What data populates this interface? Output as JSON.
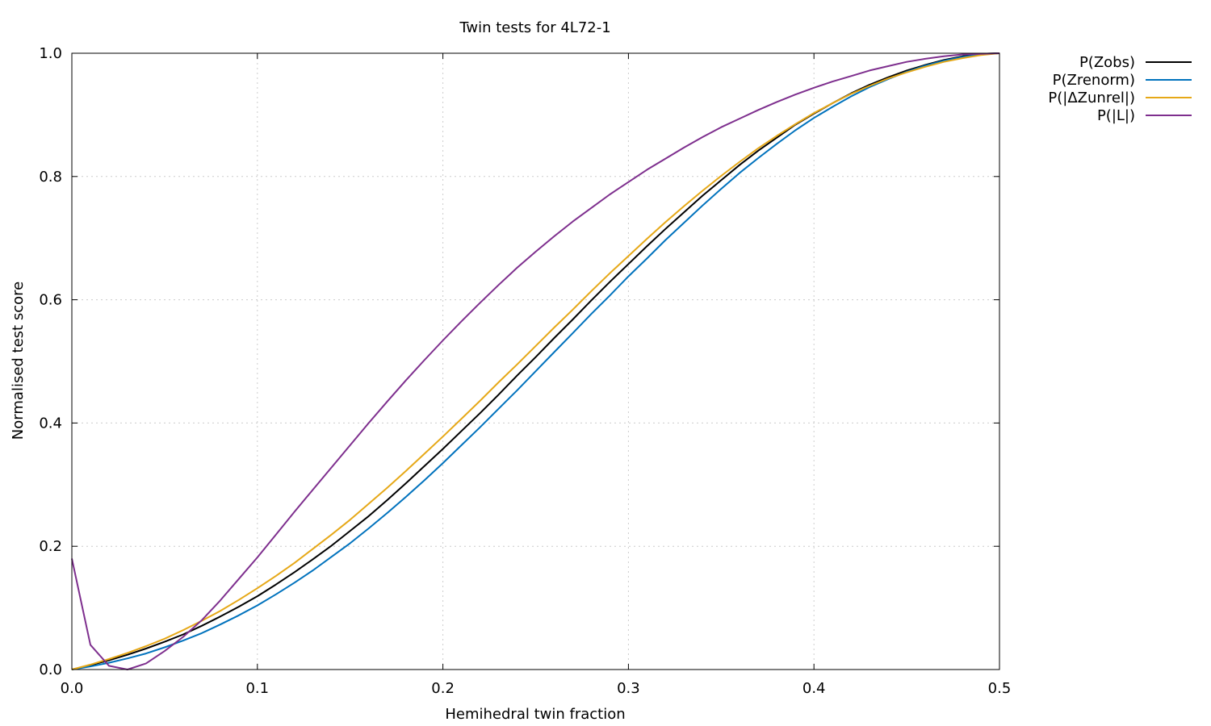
{
  "chart_data": {
    "type": "line",
    "title": "Twin tests for 4L72-1",
    "xlabel": "Hemihedral twin fraction",
    "ylabel": "Normalised test score",
    "xlim": [
      0,
      0.5
    ],
    "ylim": [
      0,
      1
    ],
    "grid": true,
    "legend_position": "top-right-outside",
    "x_ticks": [
      "0.0",
      "0.1",
      "0.2",
      "0.3",
      "0.4",
      "0.5"
    ],
    "y_ticks": [
      "0.0",
      "0.2",
      "0.4",
      "0.6",
      "0.8",
      "1.0"
    ],
    "x": [
      0,
      0.01,
      0.02,
      0.03,
      0.04,
      0.05,
      0.06,
      0.07,
      0.08,
      0.09,
      0.1,
      0.11,
      0.12,
      0.13,
      0.14,
      0.15,
      0.16,
      0.17,
      0.18,
      0.19,
      0.2,
      0.21,
      0.22,
      0.23,
      0.24,
      0.25,
      0.26,
      0.27,
      0.28,
      0.29,
      0.3,
      0.31,
      0.32,
      0.33,
      0.34,
      0.35,
      0.36,
      0.37,
      0.38,
      0.39,
      0.4,
      0.41,
      0.42,
      0.43,
      0.44,
      0.45,
      0.46,
      0.47,
      0.48,
      0.49,
      0.5
    ],
    "series": [
      {
        "name": "P(Zobs)",
        "color": "#000000",
        "values": [
          0.0,
          0.007,
          0.015,
          0.024,
          0.034,
          0.045,
          0.057,
          0.071,
          0.086,
          0.102,
          0.119,
          0.138,
          0.158,
          0.179,
          0.201,
          0.225,
          0.249,
          0.275,
          0.302,
          0.33,
          0.358,
          0.387,
          0.416,
          0.446,
          0.477,
          0.507,
          0.538,
          0.568,
          0.599,
          0.629,
          0.658,
          0.687,
          0.715,
          0.742,
          0.769,
          0.794,
          0.819,
          0.842,
          0.863,
          0.884,
          0.902,
          0.919,
          0.935,
          0.949,
          0.961,
          0.972,
          0.981,
          0.989,
          0.995,
          0.999,
          1.0
        ]
      },
      {
        "name": "P(Zrenorm)",
        "color": "#0072bd",
        "values": [
          0.0,
          0.005,
          0.011,
          0.018,
          0.026,
          0.036,
          0.047,
          0.059,
          0.073,
          0.088,
          0.104,
          0.122,
          0.141,
          0.161,
          0.183,
          0.205,
          0.229,
          0.254,
          0.28,
          0.307,
          0.335,
          0.364,
          0.393,
          0.423,
          0.453,
          0.484,
          0.515,
          0.546,
          0.577,
          0.607,
          0.638,
          0.667,
          0.697,
          0.725,
          0.753,
          0.78,
          0.806,
          0.83,
          0.853,
          0.875,
          0.895,
          0.913,
          0.93,
          0.945,
          0.958,
          0.97,
          0.98,
          0.988,
          0.994,
          0.998,
          1.0
        ]
      },
      {
        "name": "P(|ΔZunrel|)",
        "color": "#e6a817",
        "values": [
          0.0,
          0.008,
          0.017,
          0.027,
          0.038,
          0.05,
          0.064,
          0.079,
          0.095,
          0.113,
          0.132,
          0.152,
          0.173,
          0.196,
          0.219,
          0.243,
          0.269,
          0.295,
          0.322,
          0.35,
          0.378,
          0.407,
          0.436,
          0.466,
          0.495,
          0.525,
          0.555,
          0.584,
          0.614,
          0.643,
          0.671,
          0.699,
          0.726,
          0.752,
          0.777,
          0.801,
          0.824,
          0.846,
          0.866,
          0.885,
          0.903,
          0.919,
          0.934,
          0.947,
          0.959,
          0.969,
          0.978,
          0.986,
          0.992,
          0.997,
          1.0
        ]
      },
      {
        "name": "P(|L|)",
        "color": "#7e2f8e",
        "values": [
          0.18,
          0.04,
          0.006,
          0.0,
          0.01,
          0.03,
          0.053,
          0.08,
          0.112,
          0.147,
          0.182,
          0.219,
          0.256,
          0.292,
          0.328,
          0.364,
          0.4,
          0.435,
          0.469,
          0.502,
          0.534,
          0.565,
          0.595,
          0.624,
          0.652,
          0.678,
          0.703,
          0.727,
          0.749,
          0.771,
          0.791,
          0.811,
          0.829,
          0.847,
          0.864,
          0.88,
          0.894,
          0.908,
          0.921,
          0.933,
          0.944,
          0.954,
          0.963,
          0.972,
          0.979,
          0.986,
          0.991,
          0.995,
          0.998,
          0.999,
          1.0
        ]
      }
    ]
  }
}
